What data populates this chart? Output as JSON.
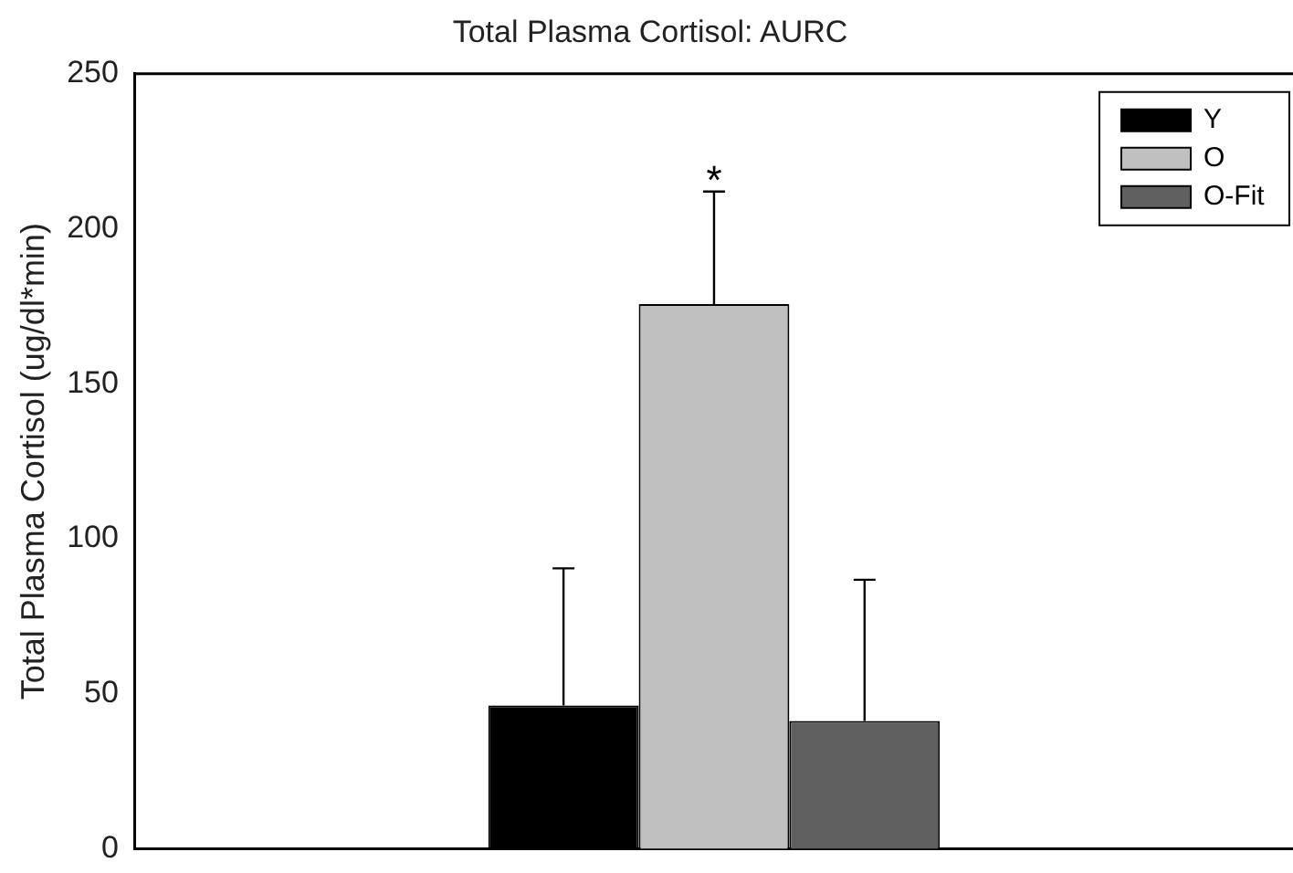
{
  "chart_data": {
    "type": "bar",
    "title": "Total Plasma Cortisol: AURC",
    "ylabel": "Total Plasma Cortisol (ug/dl*min)",
    "categories": [
      null
    ],
    "series": [
      {
        "name": "Y",
        "color": "#000000",
        "values": [
          46.3
        ],
        "errors": [
          [
            46.3,
            90.5
          ]
        ]
      },
      {
        "name": "O",
        "color": "#c0c0c0",
        "values": [
          175.7
        ],
        "errors": [
          [
            175.7,
            212
          ]
        ]
      },
      {
        "name": "O-Fit",
        "color": "#606060",
        "values": [
          41.3
        ],
        "errors": [
          [
            41.3,
            86.8
          ]
        ]
      }
    ],
    "ylim": [
      0,
      250
    ],
    "yticks": [
      0,
      50,
      100,
      150,
      200,
      250
    ],
    "grid": false,
    "legend": "top right",
    "tick_labels": "y",
    "annotations": [
      {
        "text": "*",
        "y": 212
      }
    ]
  }
}
